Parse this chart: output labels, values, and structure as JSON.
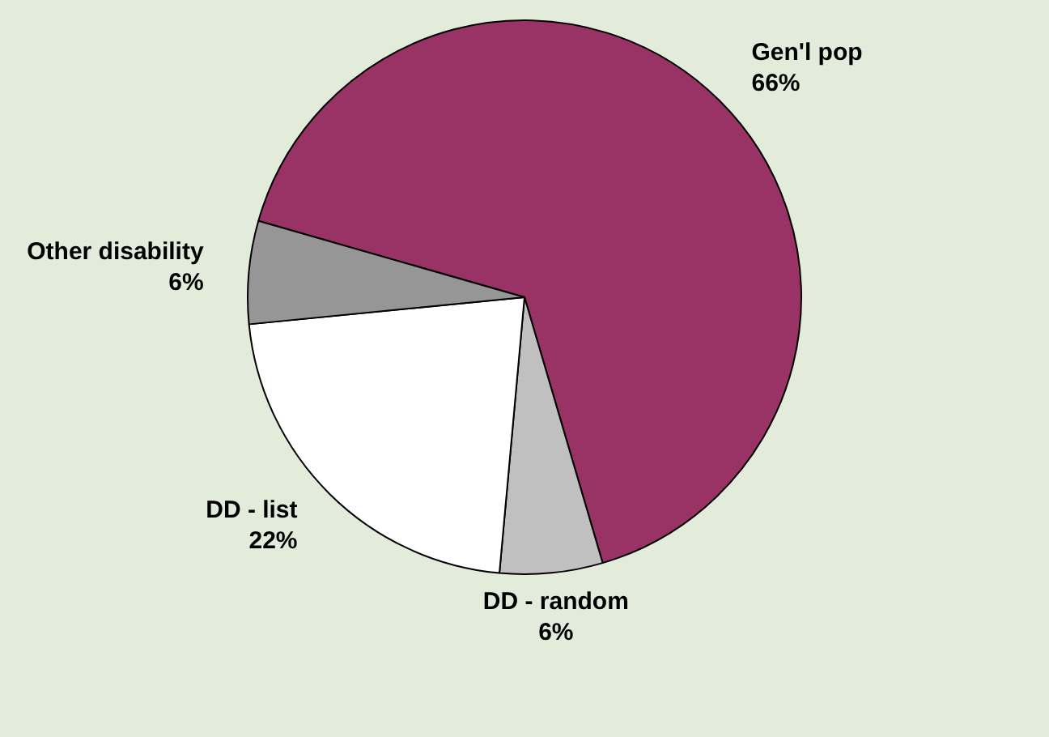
{
  "chart_data": {
    "type": "pie",
    "categories": [
      "Gen'l pop",
      "DD - random",
      "DD - list",
      "Other disability"
    ],
    "values": [
      66,
      6,
      22,
      6
    ],
    "value_labels": [
      "66%",
      "6%",
      "22%",
      "6%"
    ],
    "colors": [
      "#993366",
      "#c0c0c0",
      "#ffffff",
      "#969696"
    ],
    "legend": false
  }
}
